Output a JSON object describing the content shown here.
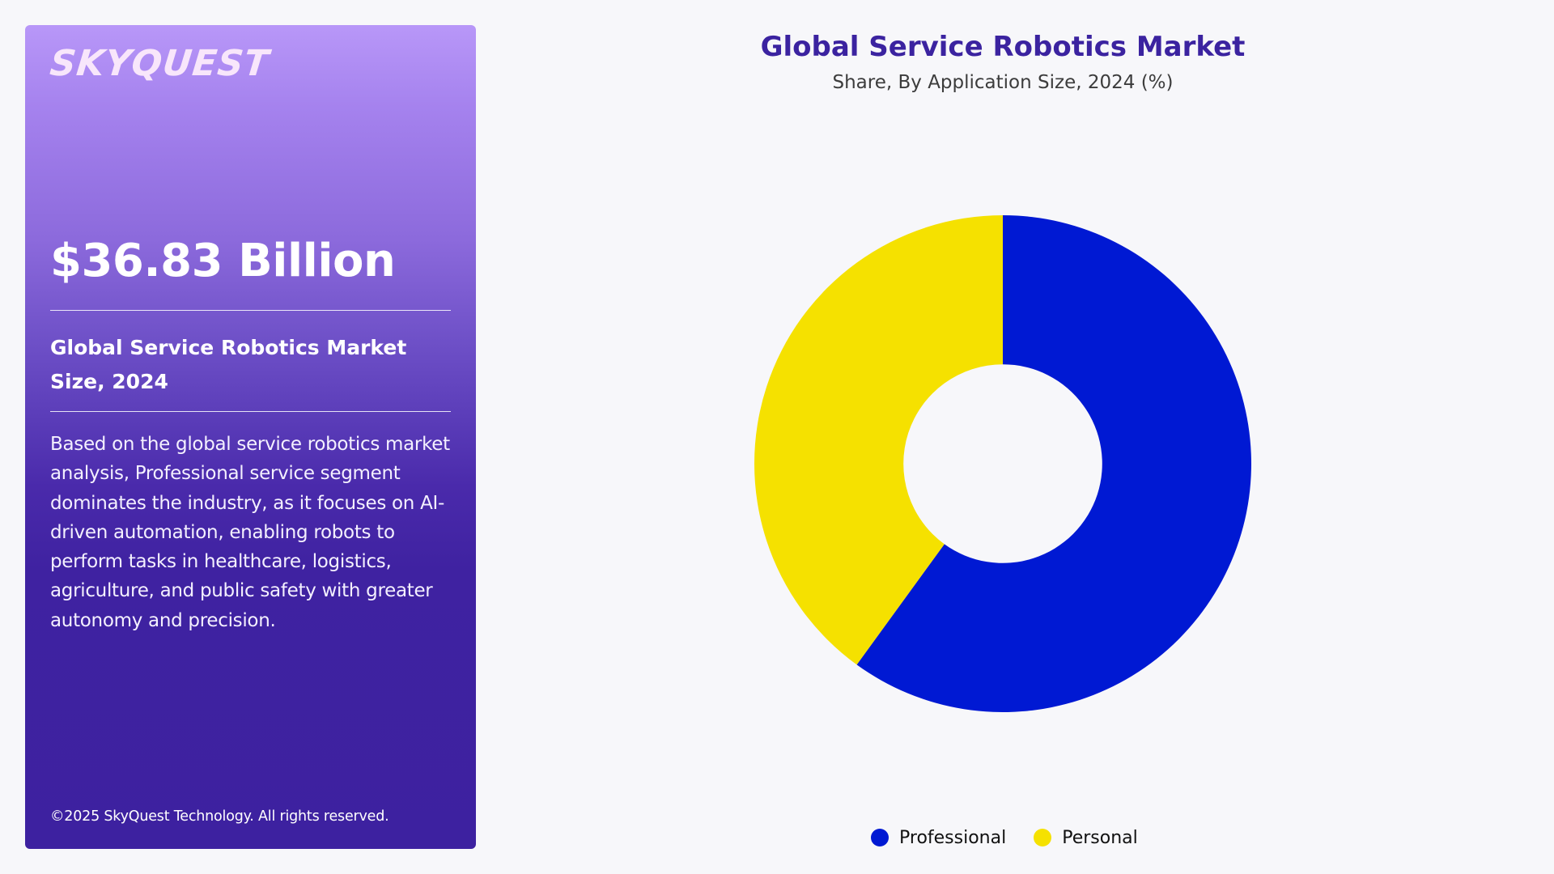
{
  "panel": {
    "logo": "SKYQUEST",
    "market_value": "$36.83 Billion",
    "heading": "Global Service Robotics Market Size, 2024",
    "description": "Based on the global service robotics market analysis, Professional service segment dominates the industry, as it focuses on AI-driven automation, enabling robots to perform tasks in healthcare, logistics, agriculture, and public safety with greater autonomy and precision.",
    "copyright": "©2025 SkyQuest Technology. All rights reserved.",
    "colors": {
      "gradient_top": "#b897f8",
      "gradient_bottom": "#3d21a0",
      "logo": "#f8e6fb"
    }
  },
  "chart": {
    "title": "Global Service Robotics Market",
    "subtitle": "Share, By Application Size, 2024 (%)",
    "legend": [
      {
        "label": "Professional",
        "color": "#0019d3"
      },
      {
        "label": "Personal",
        "color": "#f5e100"
      }
    ]
  },
  "chart_data": {
    "type": "pie",
    "subtype": "donut",
    "title": "Global Service Robotics Market",
    "subtitle": "Share, By Application Size, 2024 (%)",
    "categories": [
      "Professional",
      "Personal"
    ],
    "values": [
      60,
      40
    ],
    "colors": [
      "#0019d3",
      "#f5e100"
    ],
    "start_angle_deg": 0,
    "direction": "clockwise",
    "inner_radius_ratio": 0.4,
    "legend_position": "bottom",
    "data_labels": false
  }
}
